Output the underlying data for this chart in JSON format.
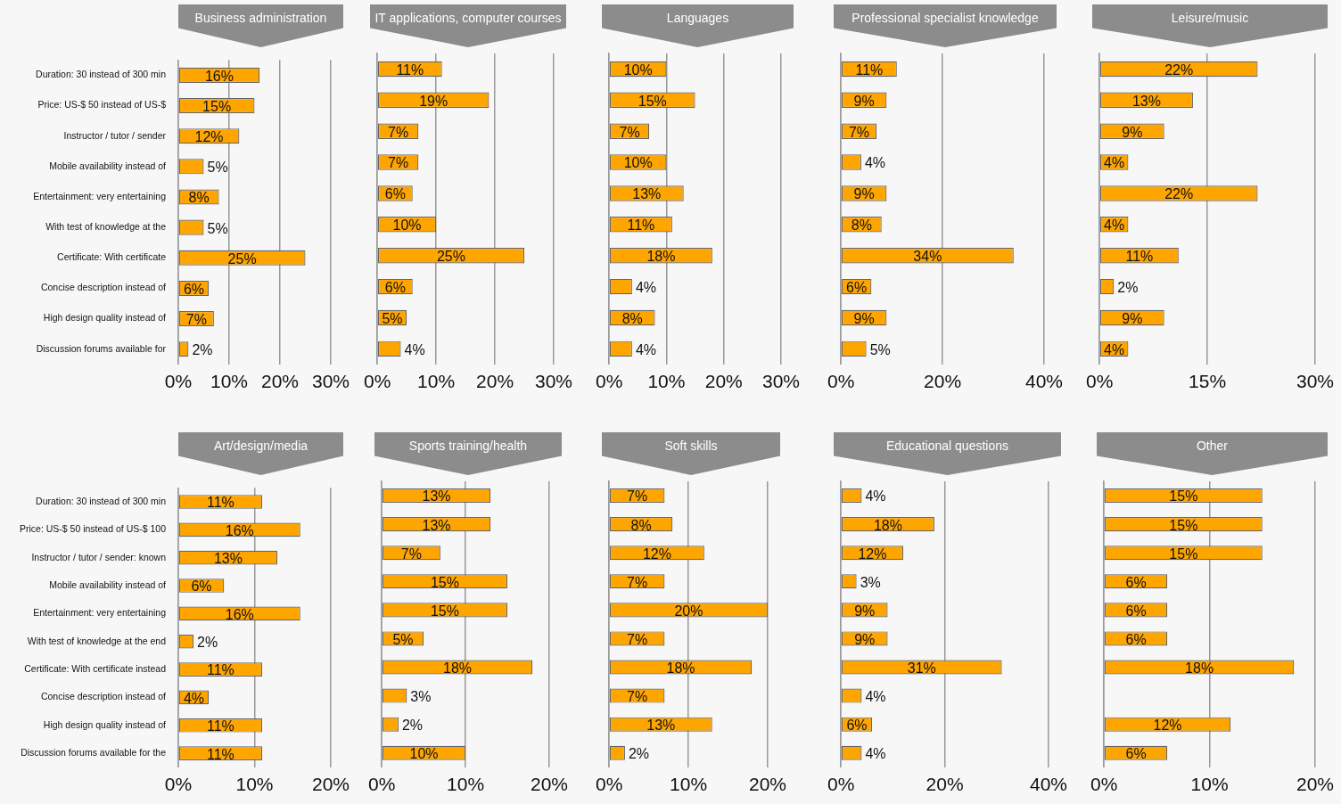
{
  "chart_data": [
    {
      "type": "bar",
      "orientation": "horizontal",
      "title": "Business administration",
      "categories": [
        "Duration: 30 instead of 300 min",
        "Price: US-$ 50 instead of US-$",
        "Instructor / tutor / sender",
        "Mobile availability instead of",
        "Entertainment: very entertaining",
        "With test of knowledge at the",
        "Certificate: With certificate",
        "Concise description instead of",
        "High design quality instead of",
        "Discussion forums available for"
      ],
      "values": [
        16,
        15,
        12,
        5,
        8,
        5,
        25,
        6,
        7,
        2
      ],
      "value_labels": [
        "16%",
        "15%",
        "12%",
        "5%",
        "8%",
        "5%",
        "25%",
        "6%",
        "7%",
        "2%"
      ],
      "color": "#ffa500",
      "xlim": [
        0,
        30
      ],
      "xticks": [
        {
          "value": 0,
          "label": "0%"
        },
        {
          "value": 10,
          "label": "10%"
        },
        {
          "value": 20,
          "label": "20%"
        },
        {
          "value": 30,
          "label": "30%"
        }
      ],
      "grid": "x",
      "legend": false
    },
    {
      "type": "bar",
      "orientation": "horizontal",
      "title": "IT applications, computer courses",
      "categories": [
        null,
        null,
        null,
        null,
        null,
        null,
        null,
        null,
        null,
        null
      ],
      "values": [
        11,
        19,
        7,
        7,
        6,
        10,
        25,
        6,
        5,
        4
      ],
      "value_labels": [
        "11%",
        "19%",
        "7%",
        "7%",
        "6%",
        "10%",
        "25%",
        "6%",
        "5%",
        "4%"
      ],
      "color": "#ffa500",
      "xlim": [
        0,
        30
      ],
      "xticks": [
        {
          "value": 0,
          "label": "0%"
        },
        {
          "value": 10,
          "label": "10%"
        },
        {
          "value": 20,
          "label": "20%"
        },
        {
          "value": 30,
          "label": "30%"
        }
      ],
      "grid": "x",
      "legend": false,
      "tick_labels": "x"
    },
    {
      "type": "bar",
      "orientation": "horizontal",
      "title": "Languages",
      "categories": [
        null,
        null,
        null,
        null,
        null,
        null,
        null,
        null,
        null,
        null
      ],
      "values": [
        10,
        15,
        7,
        10,
        13,
        11,
        18,
        4,
        8,
        4
      ],
      "value_labels": [
        "10%",
        "15%",
        "7%",
        "10%",
        "13%",
        "11%",
        "18%",
        "4%",
        "8%",
        "4%"
      ],
      "color": "#ffa500",
      "xlim": [
        0,
        30
      ],
      "xticks": [
        {
          "value": 0,
          "label": "0%"
        },
        {
          "value": 10,
          "label": "10%"
        },
        {
          "value": 20,
          "label": "20%"
        },
        {
          "value": 30,
          "label": "30%"
        }
      ],
      "grid": "x",
      "legend": false,
      "tick_labels": "x"
    },
    {
      "type": "bar",
      "orientation": "horizontal",
      "title": "Professional specialist knowledge",
      "categories": [
        null,
        null,
        null,
        null,
        null,
        null,
        null,
        null,
        null,
        null
      ],
      "values": [
        11,
        9,
        7,
        4,
        9,
        8,
        34,
        6,
        9,
        5
      ],
      "value_labels": [
        "11%",
        "9%",
        "7%",
        "4%",
        "9%",
        "8%",
        "34%",
        "6%",
        "9%",
        "5%"
      ],
      "color": "#ffa500",
      "xlim": [
        0,
        40
      ],
      "xticks": [
        {
          "value": 0,
          "label": "0%"
        },
        {
          "value": 20,
          "label": "20%"
        },
        {
          "value": 40,
          "label": "40%"
        }
      ],
      "grid": "x",
      "legend": false,
      "tick_labels": "x"
    },
    {
      "type": "bar",
      "orientation": "horizontal",
      "title": "Leisure/music",
      "categories": [
        null,
        null,
        null,
        null,
        null,
        null,
        null,
        null,
        null,
        null
      ],
      "values": [
        22,
        13,
        9,
        4,
        22,
        4,
        11,
        2,
        9,
        4
      ],
      "value_labels": [
        "22%",
        "13%",
        "9%",
        "4%",
        "22%",
        "4%",
        "11%",
        "2%",
        "9%",
        "4%"
      ],
      "color": "#ffa500",
      "xlim": [
        0,
        30
      ],
      "xticks": [
        {
          "value": 0,
          "label": "0%"
        },
        {
          "value": 15,
          "label": "15%"
        },
        {
          "value": 30,
          "label": "30%"
        }
      ],
      "grid": "x",
      "legend": false,
      "tick_labels": "x"
    },
    {
      "type": "bar",
      "orientation": "horizontal",
      "title": "Art/design/media",
      "categories": [
        "Duration: 30 instead of 300 min",
        "Price: US-$ 50 instead of US-$ 100",
        "Instructor / tutor / sender: known",
        "Mobile availability instead of",
        "Entertainment: very entertaining",
        "With test of knowledge at the end",
        "Certificate: With certificate instead",
        "Concise description instead of",
        "High design quality instead of",
        "Discussion forums available for the"
      ],
      "values": [
        11,
        16,
        13,
        6,
        16,
        2,
        11,
        4,
        11,
        11
      ],
      "value_labels": [
        "11%",
        "16%",
        "13%",
        "6%",
        "16%",
        "2%",
        "11%",
        "4%",
        "11%",
        "11%"
      ],
      "color": "#ffa500",
      "xlim": [
        0,
        20
      ],
      "xticks": [
        {
          "value": 0,
          "label": "0%"
        },
        {
          "value": 10,
          "label": "10%"
        },
        {
          "value": 20,
          "label": "20%"
        }
      ],
      "grid": "x",
      "legend": false
    },
    {
      "type": "bar",
      "orientation": "horizontal",
      "title": "Sports training/health",
      "categories": [
        null,
        null,
        null,
        null,
        null,
        null,
        null,
        null,
        null,
        null
      ],
      "values": [
        13,
        13,
        7,
        15,
        15,
        5,
        18,
        3,
        2,
        10
      ],
      "value_labels": [
        "13%",
        "13%",
        "7%",
        "15%",
        "15%",
        "5%",
        "18%",
        "3%",
        "2%",
        "10%"
      ],
      "color": "#ffa500",
      "xlim": [
        0,
        20
      ],
      "xticks": [
        {
          "value": 0,
          "label": "0%"
        },
        {
          "value": 10,
          "label": "10%"
        },
        {
          "value": 20,
          "label": "20%"
        }
      ],
      "grid": "x",
      "legend": false,
      "tick_labels": "x"
    },
    {
      "type": "bar",
      "orientation": "horizontal",
      "title": "Soft skills",
      "categories": [
        null,
        null,
        null,
        null,
        null,
        null,
        null,
        null,
        null,
        null
      ],
      "values": [
        7,
        8,
        12,
        7,
        20,
        7,
        18,
        7,
        13,
        2
      ],
      "value_labels": [
        "7%",
        "8%",
        "12%",
        "7%",
        "20%",
        "7%",
        "18%",
        "7%",
        "13%",
        "2%"
      ],
      "color": "#ffa500",
      "xlim": [
        0,
        20
      ],
      "xticks": [
        {
          "value": 0,
          "label": "0%"
        },
        {
          "value": 10,
          "label": "10%"
        },
        {
          "value": 20,
          "label": "20%"
        }
      ],
      "grid": "x",
      "legend": false,
      "tick_labels": "x"
    },
    {
      "type": "bar",
      "orientation": "horizontal",
      "title": "Educational questions",
      "categories": [
        null,
        null,
        null,
        null,
        null,
        null,
        null,
        null,
        null,
        null
      ],
      "values": [
        4,
        18,
        12,
        3,
        9,
        9,
        31,
        4,
        6,
        4
      ],
      "value_labels": [
        "4%",
        "18%",
        "12%",
        "3%",
        "9%",
        "9%",
        "31%",
        "4%",
        "6%",
        "4%"
      ],
      "color": "#ffa500",
      "xlim": [
        0,
        40
      ],
      "xticks": [
        {
          "value": 0,
          "label": "0%"
        },
        {
          "value": 20,
          "label": "20%"
        },
        {
          "value": 40,
          "label": "40%"
        }
      ],
      "grid": "x",
      "legend": false,
      "tick_labels": "x"
    },
    {
      "type": "bar",
      "orientation": "horizontal",
      "title": "Other",
      "categories": [
        null,
        null,
        null,
        null,
        null,
        null,
        null,
        null,
        null,
        null
      ],
      "values": [
        15,
        15,
        15,
        6,
        6,
        6,
        18,
        null,
        12,
        6
      ],
      "value_labels": [
        "15%",
        "15%",
        "15%",
        "6%",
        "6%",
        "6%",
        "18%",
        null,
        "12%",
        "6%"
      ],
      "color": "#ffa500",
      "xlim": [
        0,
        20
      ],
      "xticks": [
        {
          "value": 0,
          "label": "0%"
        },
        {
          "value": 10,
          "label": "10%"
        },
        {
          "value": 20,
          "label": "20%"
        }
      ],
      "grid": "x",
      "legend": false,
      "tick_labels": "x"
    }
  ]
}
